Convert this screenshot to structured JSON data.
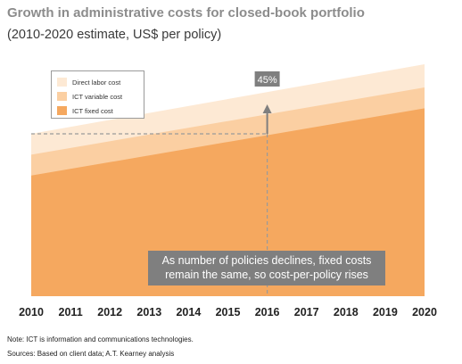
{
  "header": {
    "title": "Growth in administrative costs for closed-book portfolio",
    "subtitle": "(2010-2020 estimate, US$ per policy)"
  },
  "footer": {
    "note": "Note: ICT is information and communications technologies.",
    "sources": "Sources: Based on client data; A.T. Kearney analysis"
  },
  "chart_data": {
    "type": "area",
    "stacked": true,
    "x": [
      2010,
      2011,
      2012,
      2013,
      2014,
      2015,
      2016,
      2017,
      2018,
      2019,
      2020
    ],
    "xlim": [
      2010,
      2020
    ],
    "ylim": [
      0,
      1
    ],
    "y_axis_labels_shown": false,
    "grid": false,
    "legend_position": "top-left",
    "series": [
      {
        "name": "ICT fixed cost",
        "color": "#f5a85f",
        "start": 0.52,
        "end": 0.81
      },
      {
        "name": "ICT variable cost",
        "color": "#fbcfa2",
        "start": 0.61,
        "end": 0.9
      },
      {
        "name": "Direct labor cost",
        "color": "#fde9d4",
        "start": 0.7,
        "end": 1.0
      }
    ],
    "annotations": {
      "percent_label": "45%",
      "percent_from_x": 2016,
      "percent_from_value": 0.7,
      "callout_text_line1": "As number of policies declines, fixed costs",
      "callout_text_line2": "remain the same, so cost-per-policy rises"
    },
    "colors": {
      "callout_bg": "#7f7f7f",
      "arrow": "#7f7f7f",
      "dash": "#9a9a9a"
    }
  }
}
